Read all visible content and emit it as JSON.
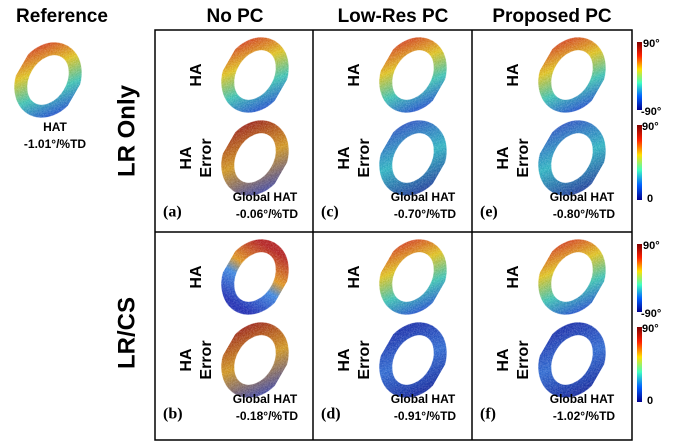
{
  "header": {
    "reference": "Reference",
    "columns": [
      "No PC",
      "Low-Res PC",
      "Proposed PC"
    ]
  },
  "reference": {
    "label": "HAT",
    "value": "-1.01°/%TD"
  },
  "map_labels": {
    "ha": "HA",
    "error_line1": "HA",
    "error_line2": "Error"
  },
  "rows": [
    {
      "label": "LR Only",
      "panels": [
        {
          "tag": "(a)",
          "metric": "Global HAT",
          "value": "-0.06°/%TD"
        },
        {
          "tag": "(c)",
          "metric": "Global HAT",
          "value": "-0.70°/%TD"
        },
        {
          "tag": "(e)",
          "metric": "Global HAT",
          "value": "-0.80°/%TD"
        }
      ]
    },
    {
      "label": "LR/CS",
      "panels": [
        {
          "tag": "(b)",
          "metric": "Global HAT",
          "value": "-0.18°/%TD"
        },
        {
          "tag": "(d)",
          "metric": "Global HAT",
          "value": "-0.91°/%TD"
        },
        {
          "tag": "(f)",
          "metric": "Global HAT",
          "value": "-1.02°/%TD"
        }
      ]
    }
  ],
  "colorbars": {
    "ha": {
      "top": "90°",
      "bottom": "-90°"
    },
    "error": {
      "top": "90°",
      "bottom": "0"
    }
  }
}
